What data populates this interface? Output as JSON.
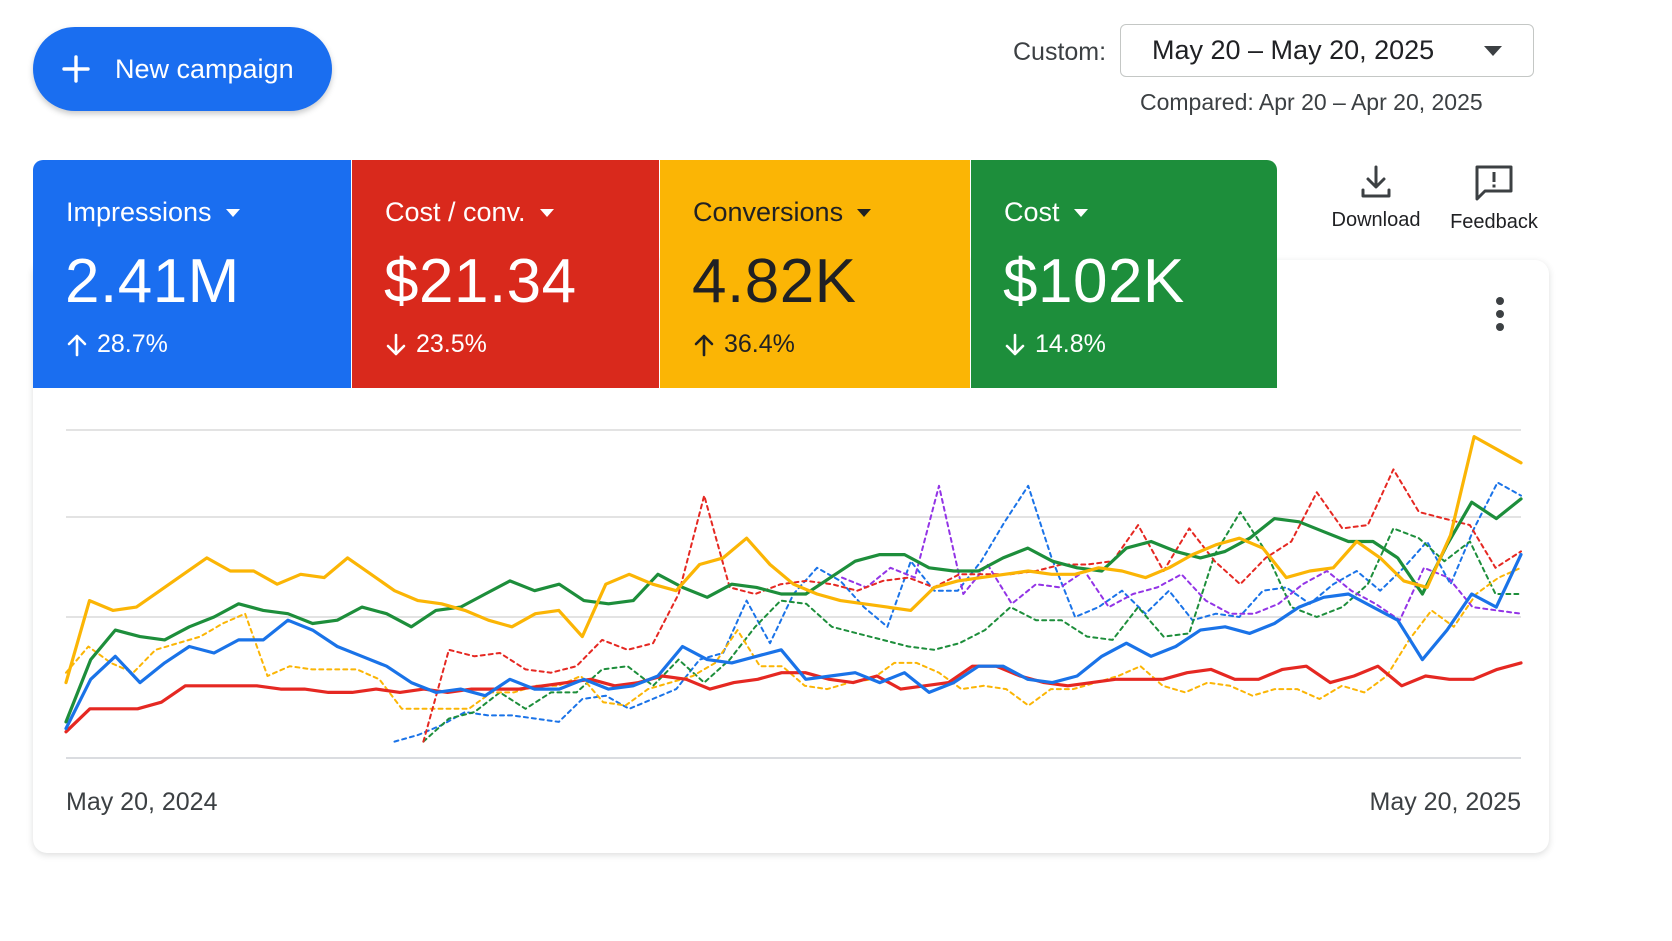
{
  "toolbar": {
    "new_campaign_label": "New campaign"
  },
  "date_range": {
    "label": "Custom:",
    "value": "May 20 – May 20, 2025",
    "compared": "Compared: Apr 20 – Apr 20, 2025"
  },
  "metrics": [
    {
      "name": "Impressions",
      "value": "2.41M",
      "change": "28.7%",
      "direction": "up",
      "color": "#1a6ef0"
    },
    {
      "name": "Cost / conv.",
      "value": "$21.34",
      "change": "23.5%",
      "direction": "down",
      "color": "#d9291c"
    },
    {
      "name": "Conversions",
      "value": "4.82K",
      "change": "36.4%",
      "direction": "up",
      "color": "#fbb505"
    },
    {
      "name": "Cost",
      "value": "$102K",
      "change": "14.8%",
      "direction": "down",
      "color": "#1d8e3b"
    }
  ],
  "tools": {
    "download_label": "Download",
    "feedback_label": "Feedback"
  },
  "chart_data": {
    "type": "line",
    "xlabel_start": "May 20, 2024",
    "xlabel_end": "May 20, 2025",
    "ylim": [
      0,
      100
    ],
    "grid": true,
    "series": [
      {
        "color": "#fbb505",
        "style": "solid",
        "values": [
          23,
          48,
          45,
          46,
          51,
          56,
          61,
          57,
          57,
          53,
          56,
          55,
          61,
          56,
          51,
          48,
          47,
          45,
          42,
          40,
          44,
          45,
          37,
          53,
          56,
          53,
          51,
          59,
          61,
          67,
          59,
          53,
          50,
          48,
          47,
          46,
          45,
          52,
          54,
          55,
          56,
          57,
          56,
          56,
          58,
          57,
          55,
          58,
          62,
          65,
          67,
          64,
          55,
          57,
          58,
          66,
          61,
          54,
          52,
          68,
          98,
          94,
          90
        ]
      },
      {
        "color": "#1d8e3b",
        "style": "solid",
        "values": [
          11,
          30,
          39,
          37,
          36,
          40,
          43,
          47,
          45,
          44,
          41,
          42,
          46,
          44,
          40,
          45,
          46,
          50,
          54,
          51,
          53,
          48,
          47,
          48,
          56,
          52,
          49,
          53,
          52,
          50,
          50,
          55,
          60,
          62,
          62,
          58,
          57,
          57,
          61,
          64,
          60,
          58,
          57,
          64,
          66,
          63,
          61,
          63,
          67,
          73,
          72,
          69,
          66,
          66,
          61,
          50,
          65,
          78,
          73,
          79
        ]
      },
      {
        "color": "#1a73e8",
        "style": "solid",
        "values": [
          9,
          24,
          31,
          23,
          29,
          34,
          32,
          36,
          36,
          42,
          39,
          34,
          31,
          28,
          23,
          20,
          21,
          19,
          24,
          21,
          21,
          24,
          21,
          22,
          25,
          34,
          30,
          29,
          31,
          33,
          24,
          25,
          26,
          23,
          26,
          20,
          23,
          28,
          28,
          24,
          23,
          25,
          31,
          35,
          31,
          34,
          39,
          40,
          38,
          41,
          46,
          49,
          50,
          46,
          42,
          30,
          39,
          50,
          46,
          62
        ]
      },
      {
        "color": "#e52822",
        "style": "solid",
        "values": [
          8,
          15,
          15,
          15,
          17,
          22,
          22,
          22,
          22,
          21,
          21,
          20,
          20,
          21,
          20,
          21,
          20,
          21,
          21,
          21,
          22,
          23,
          24,
          22,
          23,
          25,
          24,
          21,
          23,
          24,
          26,
          26,
          24,
          23,
          25,
          21,
          22,
          23,
          28,
          28,
          25,
          23,
          22,
          23,
          24,
          24,
          24,
          26,
          27,
          24,
          24,
          27,
          28,
          23,
          25,
          28,
          22,
          25,
          24,
          24,
          27,
          29
        ]
      },
      {
        "color": "#e52822",
        "style": "dashed",
        "values": [
          null,
          null,
          null,
          null,
          null,
          null,
          null,
          null,
          null,
          null,
          null,
          null,
          null,
          null,
          5,
          33,
          31,
          32,
          27,
          26,
          28,
          36,
          33,
          35,
          50,
          80,
          52,
          50,
          53,
          54,
          53,
          51,
          54,
          55,
          52,
          56,
          56,
          56,
          57,
          59,
          59,
          60,
          71,
          57,
          70,
          60,
          53,
          61,
          66,
          81,
          70,
          71,
          88,
          75,
          73,
          71,
          58,
          63
        ]
      },
      {
        "color": "#1a73e8",
        "style": "dashed",
        "values": [
          null,
          null,
          null,
          null,
          null,
          null,
          null,
          null,
          null,
          null,
          null,
          null,
          null,
          null,
          5,
          7,
          10,
          14,
          13,
          13,
          12,
          11,
          18,
          19,
          15,
          18,
          21,
          30,
          32,
          48,
          35,
          50,
          58,
          54,
          46,
          40,
          60,
          51,
          51,
          60,
          72,
          83,
          61,
          43,
          46,
          51,
          44,
          51,
          42,
          44,
          43,
          51,
          52,
          47,
          53,
          57,
          51,
          58,
          66,
          53,
          70,
          84,
          80
        ]
      },
      {
        "color": "#1d8e3b",
        "style": "dashed",
        "values": [
          null,
          null,
          null,
          null,
          null,
          null,
          null,
          null,
          null,
          null,
          null,
          null,
          null,
          null,
          5,
          12,
          14,
          20,
          15,
          20,
          20,
          27,
          28,
          22,
          30,
          23,
          30,
          40,
          48,
          47,
          40,
          38,
          36,
          34,
          33,
          35,
          39,
          46,
          42,
          42,
          37,
          36,
          46,
          37,
          38,
          62,
          75,
          63,
          46,
          43,
          46,
          53,
          70,
          67,
          60,
          66,
          50,
          50
        ]
      },
      {
        "color": "#fbb505",
        "style": "dashed",
        "values": [
          26,
          34,
          29,
          26,
          33,
          35,
          37,
          41,
          44,
          25,
          28,
          27,
          27,
          27,
          24,
          15,
          15,
          15,
          15,
          20,
          20,
          22,
          22,
          25,
          17,
          16,
          21,
          23,
          25,
          29,
          39,
          28,
          28,
          22,
          21,
          23,
          24,
          29,
          29,
          26,
          21,
          22,
          21,
          16,
          21,
          21,
          23,
          25,
          28,
          22,
          20,
          23,
          22,
          19,
          21,
          21,
          18,
          22,
          20,
          25,
          36,
          45,
          40,
          50,
          55,
          58
        ]
      },
      {
        "color": "#9334e6",
        "style": "dashed",
        "values": [
          null,
          null,
          null,
          null,
          null,
          null,
          null,
          null,
          null,
          null,
          null,
          null,
          null,
          null,
          null,
          null,
          null,
          null,
          null,
          null,
          null,
          null,
          null,
          null,
          null,
          null,
          null,
          null,
          null,
          null,
          null,
          null,
          55,
          52,
          58,
          55,
          83,
          50,
          59,
          47,
          53,
          52,
          57,
          46,
          50,
          52,
          56,
          48,
          44,
          44,
          47,
          53,
          57,
          51,
          47,
          42,
          58,
          55,
          46,
          45,
          44
        ]
      }
    ]
  }
}
